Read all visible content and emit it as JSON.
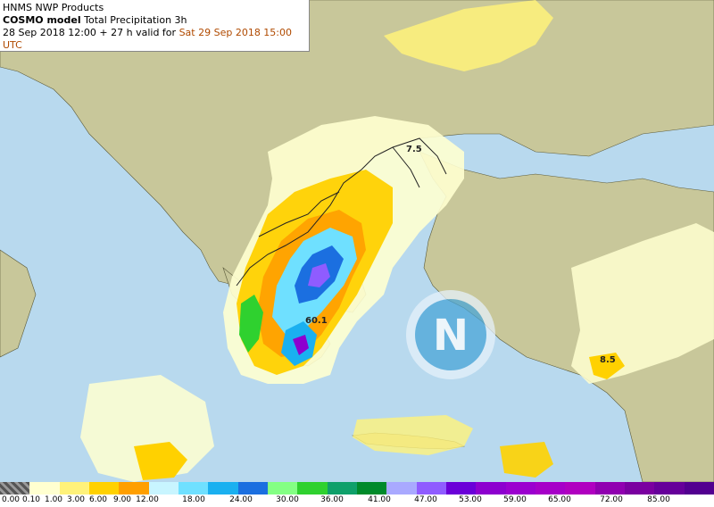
{
  "header": {
    "org": "HNMS NWP Products",
    "model": "COSMO model",
    "product": "Total Precipitation 3h",
    "run": "28 Sep 2018 12:00 + 27 h valid for ",
    "valid": "Sat 29 Sep 2018 15:00 UTC"
  },
  "max_labels": [
    {
      "text": "7.5"
    },
    {
      "text": "60.1"
    },
    {
      "text": "8.5"
    }
  ],
  "legend": {
    "colors": [
      "#4a4a4a",
      "#ffffd0",
      "#fff27a",
      "#ffd100",
      "#ff9f00",
      "#c8f5ff",
      "#6fe0ff",
      "#1ab0f0",
      "#1b6fe0",
      "#84ff84",
      "#2fd12f",
      "#0fa06a",
      "#008a2a",
      "#a9a9ff",
      "#8f5cff",
      "#6a00d8",
      "#8d00cf",
      "#9b00cf",
      "#a600c8",
      "#b000c0",
      "#9000b0",
      "#7a00a0",
      "#66009a",
      "#520090"
    ],
    "labels": [
      "0.00",
      "0.10",
      "1.00",
      "3.00",
      "6.00",
      "9.00",
      "12.00",
      "18.00",
      "24.00",
      "30.00",
      "36.00",
      "41.00",
      "47.00",
      "53.00",
      "59.00",
      "65.00",
      "72.00",
      "85.00"
    ]
  }
}
